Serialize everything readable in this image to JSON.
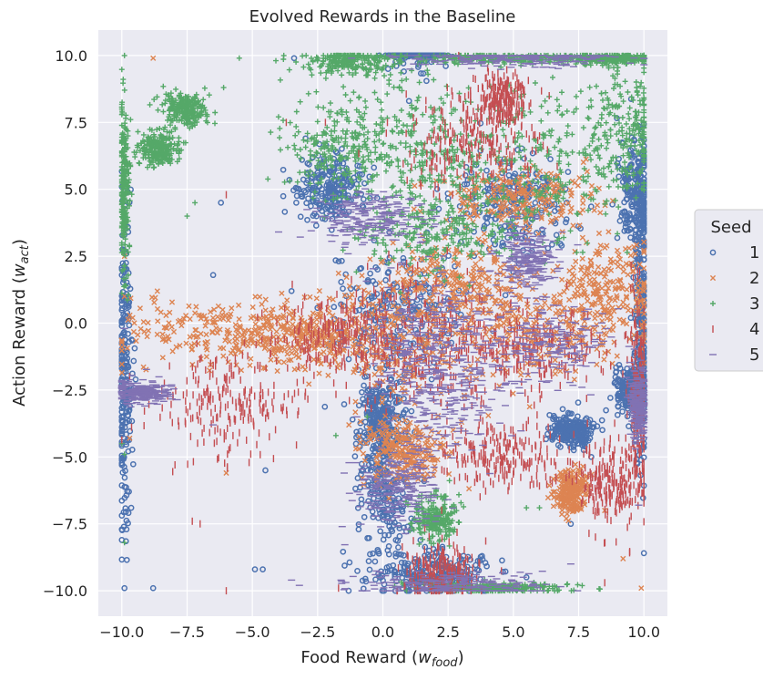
{
  "chart_data": {
    "type": "scatter",
    "title": "Evolved Rewards in the Baseline",
    "xlabel": "Food Reward (",
    "xlabel_var": "w",
    "xlabel_sub": "food",
    "xlabel_end": ")",
    "ylabel": "Action Reward (",
    "ylabel_var": "w",
    "ylabel_sub": "act",
    "ylabel_end": ")",
    "xlim": [
      -10.9,
      10.9
    ],
    "ylim": [
      -10.95,
      10.95
    ],
    "x_ticks": [
      -10.0,
      -7.5,
      -5.0,
      -2.5,
      0.0,
      2.5,
      5.0,
      7.5,
      10.0
    ],
    "y_ticks": [
      -10.0,
      -7.5,
      -5.0,
      -2.5,
      0.0,
      2.5,
      5.0,
      7.5,
      10.0
    ],
    "x_tick_labels": [
      "−10.0",
      "−7.5",
      "−5.0",
      "−2.5",
      "0.0",
      "2.5",
      "5.0",
      "7.5",
      "10.0"
    ],
    "y_tick_labels": [
      "−10.0",
      "−7.5",
      "−5.0",
      "−2.5",
      "0.0",
      "2.5",
      "5.0",
      "7.5",
      "10.0"
    ],
    "grid": true,
    "legend": {
      "title": "Seed",
      "placement": "right"
    },
    "series": [
      {
        "name": "1",
        "marker": "circle",
        "color": "#4c72b0",
        "clusters": [
          {
            "x": 1.2,
            "y": 10.5,
            "sx": 0.5,
            "sy": 0.4
          },
          {
            "x": -2.0,
            "y": 5.0,
            "sx": 0.6,
            "sy": 0.6
          },
          {
            "x": 0.1,
            "y": -6.2,
            "sx": 0.6,
            "sy": 1.5
          },
          {
            "x": -0.1,
            "y": -3.5,
            "sx": 0.4,
            "sy": 0.7
          },
          {
            "x": 2.0,
            "y": -9.4,
            "sx": 1.0,
            "sy": 0.4
          },
          {
            "x": 7.2,
            "y": -4.0,
            "sx": 0.4,
            "sy": 0.3
          },
          {
            "x": 9.9,
            "y": 0.0,
            "sx": 0.15,
            "sy": 2.5
          },
          {
            "x": -9.9,
            "y": -1.5,
            "sx": 0.15,
            "sy": 3.0
          },
          {
            "x": 0.5,
            "y": 0.5,
            "sx": 1.2,
            "sy": 1.2
          },
          {
            "x": 5.0,
            "y": 4.5,
            "sx": 1.2,
            "sy": 0.9
          },
          {
            "x": 9.7,
            "y": 5.0,
            "sx": 0.3,
            "sy": 1.0
          },
          {
            "x": 9.5,
            "y": -2.5,
            "sx": 0.3,
            "sy": 0.4
          }
        ],
        "points": [
          [
            -9.9,
            -9.9
          ],
          [
            -8.8,
            -9.9
          ],
          [
            -4.9,
            -9.2
          ],
          [
            -4.6,
            -9.2
          ],
          [
            -9.9,
            3.3
          ],
          [
            -10.0,
            -5.3
          ],
          [
            1.0,
            8.3
          ],
          [
            0.2,
            9.5
          ],
          [
            -4.5,
            -5.5
          ],
          [
            -6.2,
            4.5
          ],
          [
            -3.4,
            9.9
          ],
          [
            5.5,
            -9.5
          ],
          [
            7.2,
            -7.5
          ],
          [
            -6.5,
            1.8
          ],
          [
            -3.5,
            1.2
          ]
        ]
      },
      {
        "name": "2",
        "marker": "x",
        "color": "#dd8452",
        "clusters": [
          {
            "x": 0.8,
            "y": -0.6,
            "sx": 1.4,
            "sy": 1.5
          },
          {
            "x": 5.5,
            "y": -0.2,
            "sx": 1.6,
            "sy": 0.9
          },
          {
            "x": 8.5,
            "y": 1.0,
            "sx": 1.0,
            "sy": 1.0
          },
          {
            "x": -6.0,
            "y": -0.3,
            "sx": 2.2,
            "sy": 0.6
          },
          {
            "x": 7.2,
            "y": -6.3,
            "sx": 0.3,
            "sy": 0.4
          },
          {
            "x": 0.8,
            "y": -4.8,
            "sx": 0.8,
            "sy": 0.6
          },
          {
            "x": 3.0,
            "y": 1.5,
            "sx": 1.5,
            "sy": 0.9
          },
          {
            "x": 5.3,
            "y": 4.7,
            "sx": 1.5,
            "sy": 0.6
          },
          {
            "x": -2.8,
            "y": -0.5,
            "sx": 1.2,
            "sy": 0.6
          }
        ],
        "points": [
          [
            -6.0,
            -5.6
          ],
          [
            -8.8,
            9.9
          ],
          [
            -9.9,
            1.0
          ],
          [
            -9.7,
            -4.3
          ],
          [
            -9.9,
            2.5
          ],
          [
            8.5,
            -7.0
          ],
          [
            9.2,
            -8.8
          ],
          [
            9.9,
            -9.9
          ],
          [
            -1.3,
            -3.8
          ],
          [
            3.8,
            -9.9
          ]
        ]
      },
      {
        "name": "3",
        "marker": "plus",
        "color": "#55a868",
        "clusters": [
          {
            "x": -1.6,
            "y": 6.6,
            "sx": 1.2,
            "sy": 0.9
          },
          {
            "x": 1.5,
            "y": 6.5,
            "sx": 1.5,
            "sy": 1.3
          },
          {
            "x": 6.0,
            "y": 6.2,
            "sx": 1.6,
            "sy": 1.6
          },
          {
            "x": 9.2,
            "y": 7.3,
            "sx": 0.8,
            "sy": 1.4
          },
          {
            "x": 8.8,
            "y": 9.9,
            "sx": 0.9,
            "sy": 0.1
          },
          {
            "x": 4.5,
            "y": 9.9,
            "sx": 1.8,
            "sy": 0.1
          },
          {
            "x": -7.6,
            "y": 8.0,
            "sx": 0.4,
            "sy": 0.3
          },
          {
            "x": -8.6,
            "y": 6.5,
            "sx": 0.4,
            "sy": 0.3
          },
          {
            "x": -9.9,
            "y": 5.0,
            "sx": 0.1,
            "sy": 1.5
          },
          {
            "x": -1.2,
            "y": 9.8,
            "sx": 0.9,
            "sy": 0.25
          },
          {
            "x": 2.0,
            "y": -7.3,
            "sx": 0.4,
            "sy": 0.4
          },
          {
            "x": 4.5,
            "y": -9.9,
            "sx": 1.5,
            "sy": 0.1
          },
          {
            "x": 2.0,
            "y": 3.5,
            "sx": 1.5,
            "sy": 0.8
          }
        ],
        "points": [
          [
            -9.9,
            10.0
          ],
          [
            -9.9,
            -8.2
          ],
          [
            -10.0,
            -4.5
          ],
          [
            -9.9,
            -4.9
          ],
          [
            -7.5,
            4.0
          ],
          [
            -7.2,
            4.5
          ],
          [
            -6.1,
            8.8
          ],
          [
            -5.5,
            9.9
          ],
          [
            5.5,
            -6.9
          ],
          [
            6.0,
            -6.9
          ],
          [
            -1.8,
            -4.2
          ],
          [
            -0.6,
            -3.5
          ]
        ]
      },
      {
        "name": "4",
        "marker": "vline",
        "color": "#c44e52",
        "clusters": [
          {
            "x": 1.5,
            "y": -0.8,
            "sx": 1.4,
            "sy": 1.3
          },
          {
            "x": 5.5,
            "y": -1.0,
            "sx": 1.5,
            "sy": 0.8
          },
          {
            "x": 8.8,
            "y": -6.0,
            "sx": 0.6,
            "sy": 0.8
          },
          {
            "x": 4.5,
            "y": 8.3,
            "sx": 0.5,
            "sy": 0.5
          },
          {
            "x": 2.2,
            "y": -9.3,
            "sx": 0.7,
            "sy": 0.5
          },
          {
            "x": 3.5,
            "y": 6.8,
            "sx": 1.2,
            "sy": 0.9
          },
          {
            "x": -1.5,
            "y": -0.5,
            "sx": 1.2,
            "sy": 0.8
          },
          {
            "x": 4.5,
            "y": -5.0,
            "sx": 1.2,
            "sy": 0.6
          },
          {
            "x": -6.0,
            "y": -3.0,
            "sx": 1.5,
            "sy": 1.0
          },
          {
            "x": 9.8,
            "y": -2.5,
            "sx": 0.2,
            "sy": 2.0
          }
        ],
        "points": [
          [
            -7.0,
            -7.5
          ],
          [
            -7.3,
            -7.4
          ],
          [
            -9.7,
            -2.0
          ],
          [
            -2.2,
            7.5
          ],
          [
            -6.0,
            4.8
          ],
          [
            -1.7,
            -9.9
          ],
          [
            -3.7,
            7.5
          ],
          [
            -6.0,
            -10.0
          ],
          [
            8.5,
            -9.7
          ],
          [
            -4.2,
            -3.2
          ],
          [
            -6.6,
            -1.5
          ]
        ]
      },
      {
        "name": "5",
        "marker": "hline",
        "color": "#8172b3",
        "clusters": [
          {
            "x": 1.6,
            "y": -0.6,
            "sx": 1.2,
            "sy": 1.2
          },
          {
            "x": 2.3,
            "y": -2.8,
            "sx": 1.1,
            "sy": 1.1
          },
          {
            "x": 5.5,
            "y": 2.3,
            "sx": 0.5,
            "sy": 0.6
          },
          {
            "x": 2.5,
            "y": -9.8,
            "sx": 1.8,
            "sy": 0.25
          },
          {
            "x": -9.2,
            "y": -2.6,
            "sx": 0.6,
            "sy": 0.2
          },
          {
            "x": 5.2,
            "y": 9.9,
            "sx": 2.2,
            "sy": 0.15
          },
          {
            "x": 6.2,
            "y": -0.8,
            "sx": 1.2,
            "sy": 0.8
          },
          {
            "x": 0.5,
            "y": -6.2,
            "sx": 0.8,
            "sy": 0.8
          },
          {
            "x": 9.8,
            "y": -3.0,
            "sx": 0.2,
            "sy": 0.6
          },
          {
            "x": -0.5,
            "y": 4.0,
            "sx": 1.0,
            "sy": 0.5
          }
        ],
        "points": [
          [
            -9.9,
            -0.2
          ],
          [
            -6.5,
            -3.8
          ],
          [
            -3.5,
            -9.6
          ],
          [
            -3.2,
            -9.8
          ],
          [
            -1.0,
            -3.5
          ],
          [
            -1.6,
            -9.6
          ],
          [
            -1.2,
            9.9
          ],
          [
            7.2,
            -9.0
          ],
          [
            9.8,
            -6.8
          ]
        ]
      }
    ]
  }
}
